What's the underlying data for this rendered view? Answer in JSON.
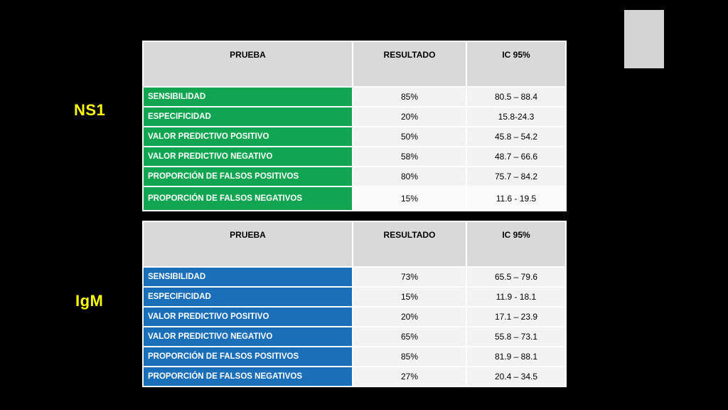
{
  "labels": {
    "ns1": "NS1",
    "igm": "IgM"
  },
  "colors": {
    "background": "#000000",
    "label": "#ffff00",
    "header_bg": "#d9d9d9",
    "value_bg": "#f2f2f2",
    "decoration": "#d4d4d4"
  },
  "tables": [
    {
      "id": "ns1",
      "accent_color": "#12a551",
      "headers": [
        "PRUEBA",
        "RESULTADO",
        "IC 95%"
      ],
      "rows": [
        {
          "prueba": "SENSIBILIDAD",
          "resultado": "85%",
          "ic": "80.5 – 88.4"
        },
        {
          "prueba": "ESPECIFICIDAD",
          "resultado": "20%",
          "ic": "15.8-24.3"
        },
        {
          "prueba": "VALOR PREDICTIVO POSITIVO",
          "resultado": "50%",
          "ic": "45.8 – 54.2"
        },
        {
          "prueba": "VALOR PREDICTIVO NEGATIVO",
          "resultado": "58%",
          "ic": "48.7 – 66.6"
        },
        {
          "prueba": "PROPORCIÓN DE FALSOS POSITIVOS",
          "resultado": "80%",
          "ic": "75.7 – 84.2"
        },
        {
          "prueba": "PROPORCIÓN DE FALSOS NEGATIVOS",
          "resultado": "15%",
          "ic": "11.6 -  19.5"
        }
      ]
    },
    {
      "id": "igm",
      "accent_color": "#1b6eb8",
      "headers": [
        "PRUEBA",
        "RESULTADO",
        "IC 95%"
      ],
      "rows": [
        {
          "prueba": "SENSIBILIDAD",
          "resultado": "73%",
          "ic": "65.5 – 79.6"
        },
        {
          "prueba": "ESPECIFICIDAD",
          "resultado": "15%",
          "ic": "11.9 - 18.1"
        },
        {
          "prueba": "VALOR PREDICTIVO POSITIVO",
          "resultado": "20%",
          "ic": "17.1 – 23.9"
        },
        {
          "prueba": "VALOR PREDICTIVO NEGATIVO",
          "resultado": "65%",
          "ic": "55.8 – 73.1"
        },
        {
          "prueba": "PROPORCIÓN DE FALSOS POSITIVOS",
          "resultado": "85%",
          "ic": "81.9 – 88.1"
        },
        {
          "prueba": "PROPORCIÓN DE FALSOS NEGATIVOS",
          "resultado": "27%",
          "ic": "20.4 – 34.5"
        }
      ]
    }
  ]
}
